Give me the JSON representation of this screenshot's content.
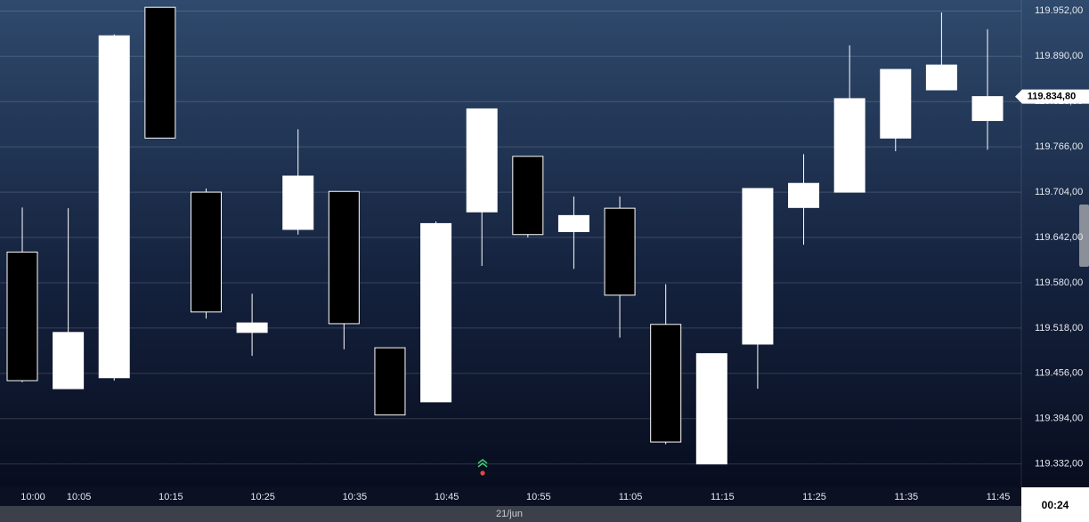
{
  "chart_data": {
    "type": "candlestick",
    "categories": [
      "10:00",
      "10:05",
      null,
      "10:15",
      null,
      "10:25",
      null,
      "10:35",
      null,
      "10:45",
      null,
      "10:55",
      null,
      "11:05",
      null,
      "11:15",
      null,
      "11:25",
      null,
      "11:35",
      null,
      "11:45"
    ],
    "open": [
      119622,
      119435,
      119450,
      119957,
      119704,
      119512,
      119653,
      119705,
      119491,
      119417,
      119677,
      119753,
      119650,
      119682,
      119523,
      119332,
      119496,
      119683,
      119704,
      119778,
      119844,
      119802
    ],
    "high": [
      119683,
      119682,
      119920,
      119957,
      119709,
      119565,
      119790,
      119705,
      119491,
      119664,
      119818,
      119753,
      119698,
      119698,
      119578,
      119483,
      119709,
      119756,
      119905,
      119872,
      119950,
      119927
    ],
    "low": [
      119444,
      119435,
      119446,
      119778,
      119531,
      119480,
      119646,
      119489,
      119399,
      119417,
      119603,
      119642,
      119599,
      119505,
      119359,
      119332,
      119435,
      119632,
      119704,
      119760,
      119844,
      119762
    ],
    "close": [
      119446,
      119512,
      119918,
      119778,
      119540,
      119525,
      119726,
      119524,
      119399,
      119661,
      119818,
      119646,
      119672,
      119563,
      119362,
      119483,
      119709,
      119716,
      119832,
      119872,
      119878,
      119834.8
    ],
    "up_color": "#ffffff",
    "down_color": "#000000",
    "ylim": [
      119300,
      119967
    ],
    "yticks": [
      {
        "value": 119332,
        "label": "119.332,00"
      },
      {
        "value": 119394,
        "label": "119.394,00"
      },
      {
        "value": 119456,
        "label": "119.456,00"
      },
      {
        "value": 119518,
        "label": "119.518,00"
      },
      {
        "value": 119580,
        "label": "119.580,00"
      },
      {
        "value": 119642,
        "label": "119.642,00"
      },
      {
        "value": 119704,
        "label": "119.704,00"
      },
      {
        "value": 119766,
        "label": "119.766,00"
      },
      {
        "value": 119828,
        "label": "119.828,00"
      },
      {
        "value": 119890,
        "label": "119.890,00"
      },
      {
        "value": 119952,
        "label": "119.952,00"
      }
    ],
    "grid": true,
    "last_price": {
      "value": 119834.8,
      "label": "119.834,80"
    },
    "date_label": "21/jun",
    "timer": "00:24"
  }
}
